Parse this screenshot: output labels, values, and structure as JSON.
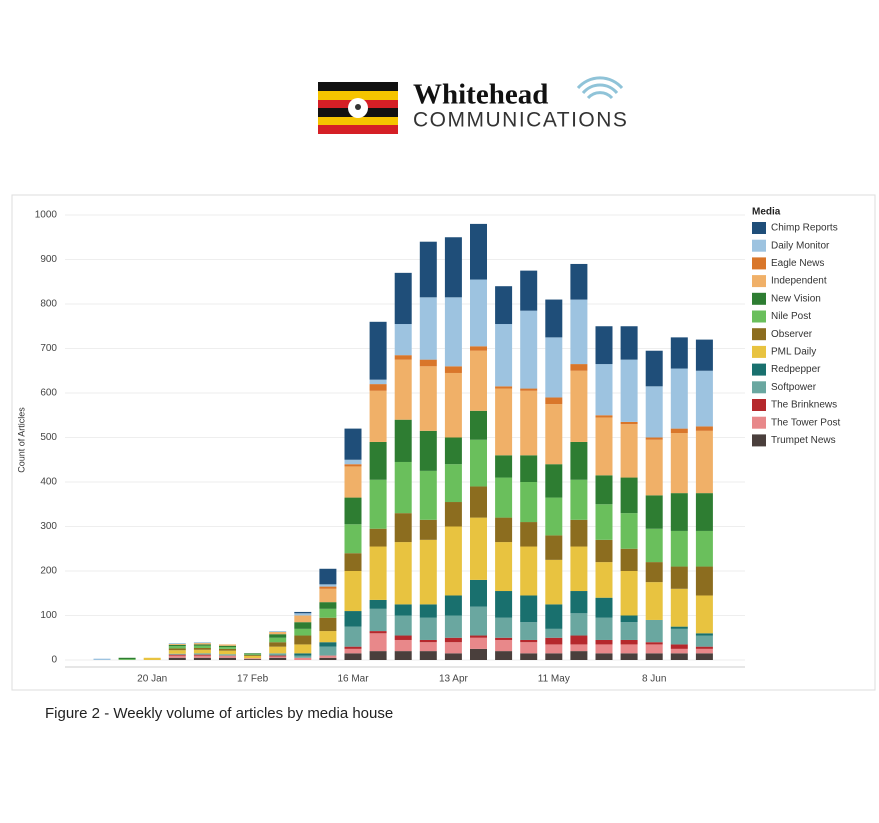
{
  "logo": {
    "name": "Whitehead",
    "tagline": "COMMUNICATIONS"
  },
  "chart_data": {
    "type": "stacked-bar",
    "y_label": "Count of Articles",
    "legend_title": "Media",
    "legend_position": "right",
    "caption": "Figure 2 - Weekly volume of articles by media house",
    "grid": true,
    "ylim": [
      0,
      1000
    ],
    "yticks": [
      0,
      100,
      200,
      300,
      400,
      500,
      600,
      700,
      800,
      900,
      1000
    ],
    "categories": [
      null,
      null,
      "20 Jan",
      null,
      null,
      null,
      "17 Feb",
      null,
      null,
      null,
      "16 Mar",
      null,
      null,
      null,
      "13 Apr",
      null,
      null,
      null,
      "11 May",
      null,
      null,
      null,
      "8 Jun",
      null,
      null
    ],
    "series": [
      {
        "name": "Chimp Reports",
        "color": "#1f4e79",
        "values": [
          0,
          0,
          0,
          0,
          0,
          0,
          0,
          0,
          3,
          35,
          70,
          130,
          115,
          125,
          135,
          125,
          85,
          90,
          85,
          80,
          85,
          75,
          80,
          70,
          70
        ]
      },
      {
        "name": "Daily Monitor",
        "color": "#9dc3e0",
        "values": [
          3,
          0,
          0,
          2,
          2,
          0,
          0,
          2,
          5,
          5,
          10,
          10,
          70,
          140,
          155,
          150,
          140,
          175,
          135,
          145,
          115,
          140,
          115,
          135,
          125
        ]
      },
      {
        "name": "Eagle News",
        "color": "#d9762a",
        "values": [
          0,
          0,
          0,
          0,
          0,
          0,
          0,
          0,
          0,
          5,
          5,
          15,
          10,
          15,
          15,
          10,
          5,
          5,
          15,
          15,
          5,
          5,
          5,
          10,
          10
        ]
      },
      {
        "name": "Independent",
        "color": "#f0b068",
        "values": [
          0,
          0,
          0,
          2,
          3,
          3,
          0,
          5,
          15,
          30,
          70,
          115,
          135,
          145,
          145,
          135,
          150,
          145,
          135,
          160,
          130,
          120,
          125,
          135,
          140
        ]
      },
      {
        "name": "New Vision",
        "color": "#2e7d32",
        "values": [
          0,
          3,
          0,
          3,
          3,
          3,
          2,
          8,
          15,
          15,
          60,
          85,
          95,
          90,
          60,
          65,
          50,
          60,
          75,
          85,
          65,
          80,
          75,
          85,
          85
        ]
      },
      {
        "name": "Nile Post",
        "color": "#6abf5c",
        "values": [
          0,
          2,
          0,
          5,
          5,
          4,
          2,
          10,
          15,
          20,
          65,
          110,
          115,
          110,
          85,
          105,
          90,
          90,
          85,
          90,
          80,
          80,
          75,
          80,
          80
        ]
      },
      {
        "name": "Observer",
        "color": "#8c6d1f",
        "values": [
          0,
          0,
          0,
          4,
          4,
          4,
          2,
          10,
          20,
          30,
          40,
          40,
          65,
          45,
          55,
          70,
          55,
          55,
          55,
          60,
          50,
          50,
          45,
          50,
          65
        ]
      },
      {
        "name": "PML Daily",
        "color": "#e8c340",
        "values": [
          0,
          0,
          5,
          8,
          8,
          8,
          5,
          15,
          20,
          25,
          90,
          120,
          140,
          145,
          155,
          140,
          110,
          110,
          100,
          100,
          80,
          100,
          85,
          85,
          85
        ]
      },
      {
        "name": "Redpepper",
        "color": "#19706e",
        "values": [
          0,
          0,
          0,
          0,
          0,
          0,
          0,
          0,
          5,
          10,
          35,
          20,
          25,
          30,
          45,
          60,
          60,
          60,
          55,
          50,
          45,
          15,
          0,
          5,
          5
        ]
      },
      {
        "name": "Softpower",
        "color": "#6aa7a0",
        "values": [
          0,
          0,
          0,
          2,
          3,
          3,
          0,
          5,
          5,
          20,
          45,
          50,
          45,
          50,
          50,
          65,
          45,
          40,
          20,
          50,
          50,
          40,
          50,
          35,
          25
        ]
      },
      {
        "name": "The Brinknews",
        "color": "#b5282c",
        "values": [
          0,
          0,
          0,
          2,
          2,
          0,
          0,
          2,
          0,
          0,
          5,
          5,
          10,
          5,
          10,
          5,
          5,
          5,
          15,
          20,
          10,
          10,
          5,
          10,
          5
        ]
      },
      {
        "name": "The Tower Post",
        "color": "#e8888a",
        "values": [
          0,
          0,
          0,
          5,
          5,
          5,
          2,
          3,
          5,
          5,
          10,
          40,
          25,
          20,
          25,
          25,
          25,
          25,
          20,
          15,
          20,
          20,
          20,
          10,
          10
        ]
      },
      {
        "name": "Trumpet News",
        "color": "#4a3f3c",
        "values": [
          0,
          0,
          0,
          5,
          5,
          5,
          2,
          5,
          0,
          5,
          15,
          20,
          20,
          20,
          15,
          25,
          20,
          15,
          15,
          20,
          15,
          15,
          15,
          15,
          15
        ]
      }
    ]
  }
}
